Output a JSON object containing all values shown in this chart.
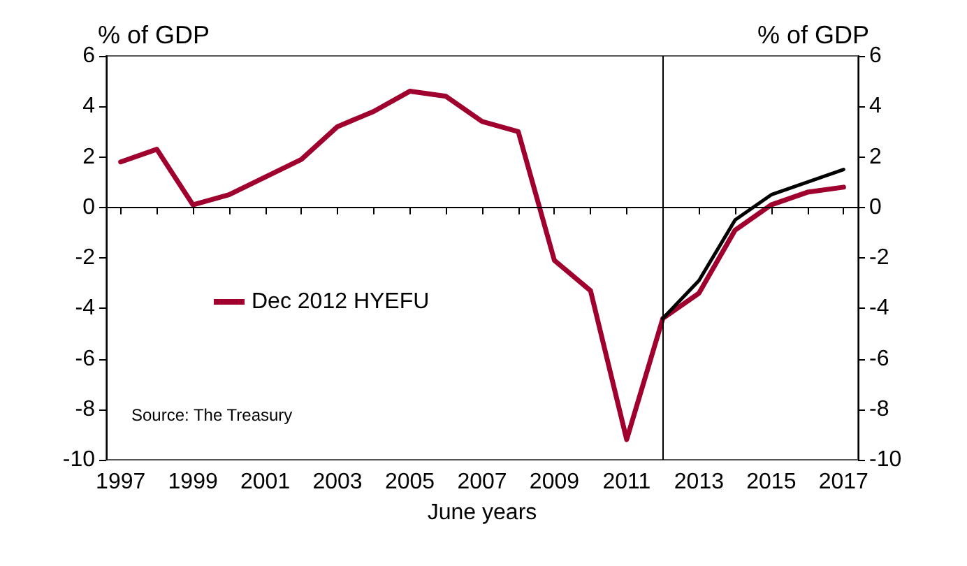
{
  "chart_data": {
    "type": "line",
    "xlabel": "June years",
    "ylabel": "% of GDP",
    "y2label": "% of GDP",
    "x": [
      1997,
      1998,
      1999,
      2000,
      2001,
      2002,
      2003,
      2004,
      2005,
      2006,
      2007,
      2008,
      2009,
      2010,
      2011,
      2012,
      2013,
      2014,
      2015,
      2016,
      2017
    ],
    "series": [
      {
        "name": "Dec 2012 HYEFU",
        "color": "#a0002d",
        "values": [
          1.8,
          2.3,
          0.1,
          0.5,
          1.2,
          1.9,
          3.2,
          3.8,
          4.6,
          4.4,
          3.4,
          3.0,
          -2.1,
          -3.3,
          -9.2,
          -4.4,
          -3.4,
          -0.9,
          0.1,
          0.6,
          0.8
        ]
      },
      {
        "color": "#000000",
        "x": [
          2012,
          2013,
          2014,
          2015,
          2016,
          2017
        ],
        "values": [
          -4.4,
          -2.9,
          -0.5,
          0.5,
          1.0,
          1.5
        ]
      }
    ],
    "xlim": [
      1996.6,
      2017.4
    ],
    "xticks": [
      1997,
      {
        "value": 1998,
        "label": null
      },
      1999,
      {
        "value": 2000,
        "label": null
      },
      2001,
      {
        "value": 2002,
        "label": null
      },
      2003,
      {
        "value": 2004,
        "label": null
      },
      2005,
      {
        "value": 2006,
        "label": null
      },
      2007,
      {
        "value": 2008,
        "label": null
      },
      2009,
      {
        "value": 2010,
        "label": null
      },
      2011,
      {
        "value": 2012,
        "label": null
      },
      2013,
      {
        "value": 2014,
        "label": null
      },
      2015,
      {
        "value": 2016,
        "label": null
      },
      2017
    ],
    "ylim": [
      -10,
      6
    ],
    "yticks": [
      -10,
      -8,
      -6,
      -4,
      -2,
      0,
      2,
      4,
      6
    ],
    "y2lim": [
      -10,
      6
    ],
    "y2ticks": [
      -10,
      -8,
      -6,
      -4,
      -2,
      0,
      2,
      4,
      6
    ],
    "ref_lines": [
      {
        "axis": "x",
        "value": 2012,
        "color": "#000000"
      },
      {
        "axis": "y",
        "value": 0,
        "color": "#000000"
      }
    ],
    "annotations": [
      "Source: The Treasury"
    ],
    "legend": "left",
    "grid": false,
    "marker": "none",
    "line_style": "solid"
  }
}
